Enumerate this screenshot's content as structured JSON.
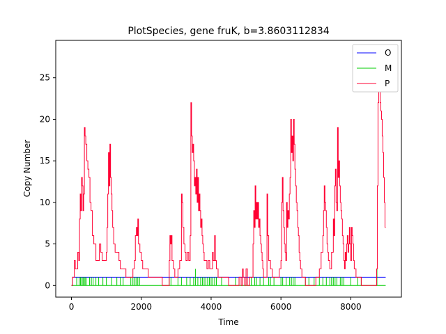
{
  "chart_data": {
    "type": "line",
    "title": "PlotSpecies, gene fruK, b=3.8603112834",
    "xlabel": "Time",
    "ylabel": "Copy Number",
    "xlim": [
      -450,
      9450
    ],
    "ylim": [
      -1.4,
      29.5
    ],
    "xticks": [
      0,
      2000,
      4000,
      6000,
      8000
    ],
    "xtick_labels": [
      "0",
      "2000",
      "4000",
      "6000",
      "8000"
    ],
    "yticks": [
      0,
      5,
      10,
      15,
      20,
      25
    ],
    "ytick_labels": [
      "0",
      "5",
      "10",
      "15",
      "20",
      "25"
    ],
    "grid": false,
    "legend_position": "top-right",
    "series": [
      {
        "name": "O",
        "color": "#0000ff",
        "step": true,
        "points": [
          [
            0,
            0
          ],
          [
            30,
            1
          ],
          [
            9000,
            1
          ]
        ]
      },
      {
        "name": "M",
        "color": "#00cc00",
        "spikes": true,
        "baseline": 0,
        "spike_x": [
          30,
          150,
          220,
          260,
          300,
          330,
          360,
          390,
          420,
          520,
          570,
          620,
          700,
          780,
          900,
          1000,
          1150,
          1300,
          1400,
          1480,
          1700,
          1760,
          1800,
          1850,
          1900,
          1950,
          2800,
          2850,
          3050,
          3150,
          3300,
          3400,
          3500,
          3550,
          3620,
          3700,
          3750,
          3800,
          3850,
          3900,
          3950,
          4000,
          4050,
          4100,
          4150,
          4300,
          4500,
          4700,
          4800,
          4900,
          5000,
          5100,
          5150,
          5250,
          5300,
          5400,
          5500,
          5650,
          5700,
          5800,
          6000,
          6050,
          6150,
          6250,
          6300,
          6350,
          6400,
          6700,
          6800,
          6950,
          7100,
          7200,
          7300,
          7400,
          7450,
          7500,
          7550,
          7600,
          7700,
          7750,
          7800,
          8000,
          8200,
          8300,
          8750
        ],
        "spike_y": [
          1,
          1,
          1,
          1,
          1,
          1,
          1,
          1,
          1,
          1,
          1,
          1,
          1,
          1,
          1,
          1,
          1,
          1,
          1,
          1,
          1,
          1,
          1,
          1,
          1,
          1,
          1,
          1,
          1,
          1,
          1,
          1,
          1,
          2,
          1,
          1,
          1,
          1,
          1,
          1,
          1,
          1,
          1,
          1,
          1,
          1,
          1,
          1,
          1,
          1,
          1,
          1,
          1,
          1,
          1,
          1,
          1,
          1,
          1,
          1,
          1,
          1,
          1,
          1,
          1,
          1,
          1,
          1,
          1,
          1,
          1,
          1,
          1,
          1,
          1,
          1,
          1,
          1,
          1,
          1,
          1,
          1,
          1,
          1,
          2
        ]
      },
      {
        "name": "P",
        "color": "#ff0033",
        "step": true,
        "points": [
          [
            0,
            0
          ],
          [
            30,
            1
          ],
          [
            80,
            3
          ],
          [
            110,
            2
          ],
          [
            180,
            4
          ],
          [
            210,
            3
          ],
          [
            230,
            8
          ],
          [
            250,
            11
          ],
          [
            270,
            9
          ],
          [
            290,
            13
          ],
          [
            310,
            12
          ],
          [
            330,
            9
          ],
          [
            350,
            11
          ],
          [
            370,
            19
          ],
          [
            390,
            18
          ],
          [
            410,
            17
          ],
          [
            440,
            15
          ],
          [
            470,
            14
          ],
          [
            500,
            13
          ],
          [
            530,
            10
          ],
          [
            560,
            9
          ],
          [
            600,
            6
          ],
          [
            640,
            5
          ],
          [
            700,
            3
          ],
          [
            760,
            3
          ],
          [
            800,
            5
          ],
          [
            840,
            4
          ],
          [
            880,
            3
          ],
          [
            930,
            3
          ],
          [
            980,
            3
          ],
          [
            1000,
            4
          ],
          [
            1020,
            7
          ],
          [
            1040,
            11
          ],
          [
            1060,
            16
          ],
          [
            1080,
            12
          ],
          [
            1100,
            17
          ],
          [
            1120,
            13
          ],
          [
            1140,
            11
          ],
          [
            1160,
            9
          ],
          [
            1180,
            7
          ],
          [
            1210,
            5
          ],
          [
            1250,
            4
          ],
          [
            1300,
            4
          ],
          [
            1360,
            3
          ],
          [
            1400,
            2
          ],
          [
            1440,
            2
          ],
          [
            1500,
            2
          ],
          [
            1560,
            1
          ],
          [
            1600,
            1
          ],
          [
            1650,
            1
          ],
          [
            1700,
            1
          ],
          [
            1760,
            2
          ],
          [
            1800,
            3
          ],
          [
            1830,
            6
          ],
          [
            1860,
            7
          ],
          [
            1880,
            6
          ],
          [
            1900,
            8
          ],
          [
            1920,
            5
          ],
          [
            1960,
            4
          ],
          [
            2000,
            3
          ],
          [
            2040,
            2
          ],
          [
            2100,
            2
          ],
          [
            2200,
            1
          ],
          [
            2300,
            1
          ],
          [
            2400,
            1
          ],
          [
            2500,
            1
          ],
          [
            2600,
            0
          ],
          [
            2700,
            0
          ],
          [
            2750,
            0
          ],
          [
            2800,
            3
          ],
          [
            2820,
            6
          ],
          [
            2840,
            5
          ],
          [
            2860,
            6
          ],
          [
            2880,
            3
          ],
          [
            2920,
            2
          ],
          [
            2960,
            1
          ],
          [
            3000,
            1
          ],
          [
            3050,
            2
          ],
          [
            3100,
            3
          ],
          [
            3150,
            11
          ],
          [
            3170,
            10
          ],
          [
            3190,
            7
          ],
          [
            3220,
            5
          ],
          [
            3250,
            4
          ],
          [
            3280,
            3
          ],
          [
            3320,
            4
          ],
          [
            3360,
            3
          ],
          [
            3400,
            6
          ],
          [
            3420,
            22
          ],
          [
            3440,
            18
          ],
          [
            3460,
            16
          ],
          [
            3480,
            17
          ],
          [
            3500,
            15
          ],
          [
            3520,
            12
          ],
          [
            3540,
            13
          ],
          [
            3560,
            11
          ],
          [
            3580,
            14
          ],
          [
            3600,
            10
          ],
          [
            3620,
            13
          ],
          [
            3640,
            9
          ],
          [
            3660,
            11
          ],
          [
            3680,
            9
          ],
          [
            3700,
            7
          ],
          [
            3720,
            8
          ],
          [
            3740,
            6
          ],
          [
            3760,
            5
          ],
          [
            3780,
            4
          ],
          [
            3800,
            3
          ],
          [
            3840,
            3
          ],
          [
            3880,
            2
          ],
          [
            3920,
            3
          ],
          [
            3960,
            2
          ],
          [
            4000,
            2
          ],
          [
            4040,
            4
          ],
          [
            4060,
            3
          ],
          [
            4100,
            6
          ],
          [
            4120,
            3
          ],
          [
            4150,
            2
          ],
          [
            4200,
            1
          ],
          [
            4300,
            1
          ],
          [
            4400,
            1
          ],
          [
            4500,
            0
          ],
          [
            4600,
            0
          ],
          [
            4700,
            0
          ],
          [
            4800,
            1
          ],
          [
            4860,
            0
          ],
          [
            4900,
            2
          ],
          [
            4920,
            1
          ],
          [
            4960,
            0
          ],
          [
            5000,
            2
          ],
          [
            5040,
            0
          ],
          [
            5100,
            1
          ],
          [
            5150,
            1
          ],
          [
            5200,
            5
          ],
          [
            5220,
            9
          ],
          [
            5240,
            7
          ],
          [
            5260,
            12
          ],
          [
            5280,
            8
          ],
          [
            5300,
            10
          ],
          [
            5320,
            8
          ],
          [
            5340,
            10
          ],
          [
            5360,
            7
          ],
          [
            5380,
            8
          ],
          [
            5400,
            6
          ],
          [
            5420,
            5
          ],
          [
            5440,
            4
          ],
          [
            5460,
            3
          ],
          [
            5480,
            2
          ],
          [
            5500,
            1
          ],
          [
            5550,
            1
          ],
          [
            5600,
            11
          ],
          [
            5620,
            6
          ],
          [
            5650,
            3
          ],
          [
            5700,
            2
          ],
          [
            5750,
            1
          ],
          [
            5800,
            1
          ],
          [
            5900,
            1
          ],
          [
            5950,
            2
          ],
          [
            6000,
            3
          ],
          [
            6020,
            10
          ],
          [
            6040,
            13
          ],
          [
            6060,
            9
          ],
          [
            6080,
            7
          ],
          [
            6100,
            5
          ],
          [
            6120,
            4
          ],
          [
            6140,
            3
          ],
          [
            6160,
            10
          ],
          [
            6180,
            7
          ],
          [
            6200,
            9
          ],
          [
            6220,
            8
          ],
          [
            6240,
            11
          ],
          [
            6260,
            13
          ],
          [
            6280,
            20
          ],
          [
            6300,
            16
          ],
          [
            6320,
            18
          ],
          [
            6340,
            15
          ],
          [
            6360,
            20
          ],
          [
            6380,
            17
          ],
          [
            6400,
            14
          ],
          [
            6420,
            12
          ],
          [
            6440,
            10
          ],
          [
            6460,
            9
          ],
          [
            6480,
            7
          ],
          [
            6500,
            6
          ],
          [
            6520,
            4
          ],
          [
            6540,
            3
          ],
          [
            6560,
            2
          ],
          [
            6600,
            1
          ],
          [
            6650,
            1
          ],
          [
            6700,
            0
          ],
          [
            6800,
            0
          ],
          [
            6900,
            0
          ],
          [
            7000,
            1
          ],
          [
            7100,
            2
          ],
          [
            7150,
            4
          ],
          [
            7200,
            6
          ],
          [
            7220,
            9
          ],
          [
            7240,
            12
          ],
          [
            7260,
            10
          ],
          [
            7280,
            9
          ],
          [
            7300,
            7
          ],
          [
            7320,
            5
          ],
          [
            7340,
            4
          ],
          [
            7360,
            3
          ],
          [
            7400,
            2
          ],
          [
            7450,
            4
          ],
          [
            7500,
            8
          ],
          [
            7520,
            6
          ],
          [
            7540,
            12
          ],
          [
            7560,
            14
          ],
          [
            7580,
            10
          ],
          [
            7600,
            9
          ],
          [
            7620,
            19
          ],
          [
            7640,
            13
          ],
          [
            7660,
            15
          ],
          [
            7680,
            12
          ],
          [
            7700,
            10
          ],
          [
            7720,
            9
          ],
          [
            7740,
            8
          ],
          [
            7760,
            6
          ],
          [
            7780,
            5
          ],
          [
            7800,
            3
          ],
          [
            7820,
            2
          ],
          [
            7840,
            4
          ],
          [
            7860,
            3
          ],
          [
            7880,
            5
          ],
          [
            7900,
            6
          ],
          [
            7920,
            4
          ],
          [
            7940,
            5
          ],
          [
            7960,
            7
          ],
          [
            7980,
            5
          ],
          [
            8000,
            3
          ],
          [
            8020,
            7
          ],
          [
            8040,
            6
          ],
          [
            8060,
            5
          ],
          [
            8080,
            3
          ],
          [
            8100,
            2
          ],
          [
            8150,
            1
          ],
          [
            8200,
            1
          ],
          [
            8300,
            0
          ],
          [
            8400,
            0
          ],
          [
            8500,
            0
          ],
          [
            8600,
            0
          ],
          [
            8700,
            0
          ],
          [
            8740,
            2
          ],
          [
            8760,
            12
          ],
          [
            8780,
            22
          ],
          [
            8800,
            24
          ],
          [
            8820,
            27
          ],
          [
            8840,
            22
          ],
          [
            8860,
            21
          ],
          [
            8880,
            20
          ],
          [
            8900,
            18
          ],
          [
            8920,
            16
          ],
          [
            8940,
            13
          ],
          [
            8960,
            10
          ],
          [
            8980,
            7
          ],
          [
            9000,
            7
          ]
        ]
      }
    ]
  }
}
